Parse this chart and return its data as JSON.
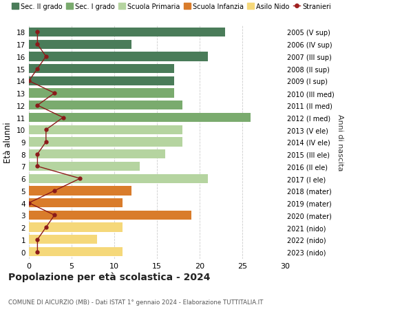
{
  "ages": [
    18,
    17,
    16,
    15,
    14,
    13,
    12,
    11,
    10,
    9,
    8,
    7,
    6,
    5,
    4,
    3,
    2,
    1,
    0
  ],
  "bar_values": [
    23,
    12,
    21,
    17,
    17,
    17,
    18,
    26,
    18,
    18,
    16,
    13,
    21,
    12,
    11,
    19,
    11,
    8,
    11
  ],
  "bar_colors": [
    "#4a7c59",
    "#4a7c59",
    "#4a7c59",
    "#4a7c59",
    "#4a7c59",
    "#7aab6e",
    "#7aab6e",
    "#7aab6e",
    "#b5d4a0",
    "#b5d4a0",
    "#b5d4a0",
    "#b5d4a0",
    "#b5d4a0",
    "#d97c2b",
    "#d97c2b",
    "#d97c2b",
    "#f5d87a",
    "#f5d87a",
    "#f5d87a"
  ],
  "stranieri": [
    1,
    1,
    2,
    1,
    0,
    3,
    1,
    4,
    2,
    2,
    1,
    1,
    6,
    3,
    0,
    3,
    2,
    1,
    1
  ],
  "right_labels": [
    "2005 (V sup)",
    "2006 (IV sup)",
    "2007 (III sup)",
    "2008 (II sup)",
    "2009 (I sup)",
    "2010 (III med)",
    "2011 (II med)",
    "2012 (I med)",
    "2013 (V ele)",
    "2014 (IV ele)",
    "2015 (III ele)",
    "2016 (II ele)",
    "2017 (I ele)",
    "2018 (mater)",
    "2019 (mater)",
    "2020 (mater)",
    "2021 (nido)",
    "2022 (nido)",
    "2023 (nido)"
  ],
  "title": "Popolazione per età scolastica - 2024",
  "subtitle": "COMUNE DI AICURZIO (MB) - Dati ISTAT 1° gennaio 2024 - Elaborazione TUTTITALIA.IT",
  "ylabel": "Età alunni",
  "right_ylabel": "Anni di nascita",
  "xlim": [
    0,
    30
  ],
  "xticks": [
    0,
    5,
    10,
    15,
    20,
    25,
    30
  ],
  "legend_labels": [
    "Sec. II grado",
    "Sec. I grado",
    "Scuola Primaria",
    "Scuola Infanzia",
    "Asilo Nido",
    "Stranieri"
  ],
  "legend_colors": [
    "#4a7c59",
    "#7aab6e",
    "#b5d4a0",
    "#d97c2b",
    "#f5d87a",
    "#a02020"
  ],
  "grid_color": "#cccccc",
  "bar_height": 0.75,
  "fig_bg": "#ffffff",
  "ax_bg": "#ffffff"
}
